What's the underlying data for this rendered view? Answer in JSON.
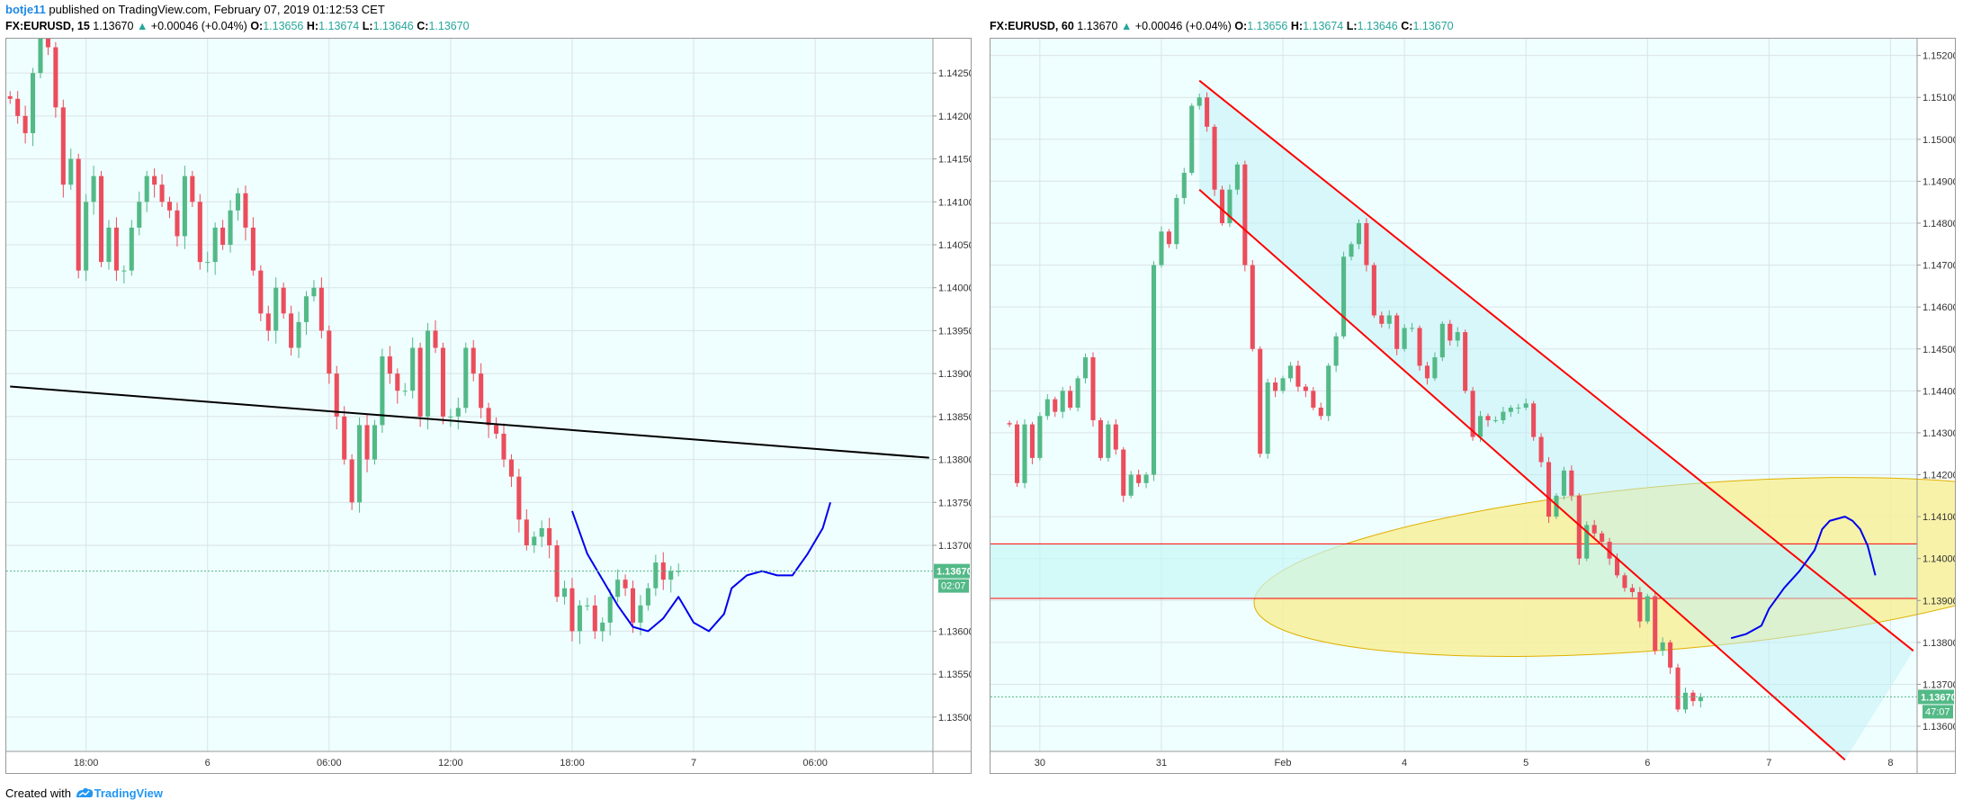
{
  "header": {
    "user": "botje11",
    "published": " published on TradingView.com, February 07, 2019 01:12:53 CET"
  },
  "footer": {
    "created": "Created with",
    "brand": "TradingView"
  },
  "colors": {
    "up": "#53b987",
    "down": "#eb4d5c",
    "bg": "#effefe",
    "grid": "#dbe3e6",
    "channel": "#ff0000",
    "ellipse": "#f7f09a",
    "zone": "#c8f7f7",
    "blue": "#0000ee"
  },
  "chart_data": [
    {
      "type": "candlestick",
      "symbol": "FX:EURUSD, 15",
      "last": "1.13670",
      "change": "+0.00046 (+0.04%)",
      "ohlc": {
        "O": "1.13656",
        "H": "1.13674",
        "L": "1.13646",
        "C": "1.13670"
      },
      "up_arrow": "▲",
      "y_ticks": [
        "1.14250",
        "1.14200",
        "1.14150",
        "1.14100",
        "1.14050",
        "1.14000",
        "1.13950",
        "1.13900",
        "1.13850",
        "1.13800",
        "1.13750",
        "1.13700",
        "1.13600",
        "1.13550",
        "1.13500"
      ],
      "ylim": [
        1.1346,
        1.1429
      ],
      "x_ticks": [
        "18:00",
        "6",
        "06:00",
        "12:00",
        "18:00",
        "7",
        "06:00"
      ],
      "x_tick_index": [
        10,
        26,
        42,
        58,
        74,
        90,
        106
      ],
      "x_slots": 122,
      "price_label": "1.13670",
      "countdown": "02:07",
      "closes": [
        1.1422,
        1.142,
        1.1418,
        1.1425,
        1.1432,
        1.1428,
        1.1421,
        1.1412,
        1.1415,
        1.1402,
        1.141,
        1.1413,
        1.1403,
        1.1407,
        1.1402,
        1.1402,
        1.1407,
        1.141,
        1.1413,
        1.1412,
        1.141,
        1.1409,
        1.1406,
        1.1413,
        1.141,
        1.1403,
        1.1403,
        1.1407,
        1.1405,
        1.1409,
        1.1411,
        1.1407,
        1.1402,
        1.1397,
        1.1395,
        1.14,
        1.1397,
        1.1393,
        1.1396,
        1.1399,
        1.14,
        1.1395,
        1.139,
        1.1385,
        1.138,
        1.1375,
        1.1384,
        1.138,
        1.1384,
        1.1392,
        1.139,
        1.1388,
        1.1388,
        1.1393,
        1.1385,
        1.1395,
        1.1393,
        1.1385,
        1.1385,
        1.1386,
        1.1393,
        1.139,
        1.1386,
        1.1384,
        1.1383,
        1.138,
        1.1378,
        1.1373,
        1.137,
        1.1371,
        1.1372,
        1.137,
        1.1364,
        1.1365,
        1.136,
        1.1363,
        1.1363,
        1.136,
        1.1361,
        1.1364,
        1.1366,
        1.1365,
        1.1361,
        1.1363,
        1.1365,
        1.1368,
        1.1366,
        1.1367,
        1.1367
      ],
      "trendline": [
        [
          0,
          1.13885
        ],
        [
          121,
          1.13802
        ]
      ],
      "blue_curve": [
        [
          74,
          1.1374
        ],
        [
          76,
          1.1369
        ],
        [
          78,
          1.1366
        ],
        [
          80,
          1.1363
        ],
        [
          82,
          1.13605
        ],
        [
          84,
          1.136
        ],
        [
          86,
          1.13615
        ],
        [
          88,
          1.1364
        ],
        [
          90,
          1.1361
        ],
        [
          92,
          1.136
        ],
        [
          94,
          1.1362
        ],
        [
          95,
          1.1365
        ],
        [
          97,
          1.13665
        ],
        [
          99,
          1.1367
        ],
        [
          101,
          1.13665
        ],
        [
          103,
          1.13665
        ],
        [
          105,
          1.1369
        ],
        [
          107,
          1.1372
        ],
        [
          108,
          1.1375
        ]
      ]
    },
    {
      "type": "candlestick",
      "symbol": "FX:EURUSD, 60",
      "last": "1.13670",
      "change": "+0.00046 (+0.04%)",
      "ohlc": {
        "O": "1.13656",
        "H": "1.13674",
        "L": "1.13646",
        "C": "1.13670"
      },
      "up_arrow": "▲",
      "y_ticks": [
        "1.15200",
        "1.15100",
        "1.15000",
        "1.14900",
        "1.14800",
        "1.14700",
        "1.14600",
        "1.14500",
        "1.14400",
        "1.14300",
        "1.14200",
        "1.14100",
        "1.14000",
        "1.13900",
        "1.13800",
        "1.13700",
        "1.13600"
      ],
      "ylim": [
        1.1354,
        1.1524
      ],
      "x_ticks": [
        "30",
        "31",
        "Feb",
        "4",
        "5",
        "6",
        "7",
        "8"
      ],
      "x_tick_index": [
        6,
        22,
        38,
        54,
        70,
        86,
        102,
        118
      ],
      "x_slots": 122,
      "price_label": "1.13670",
      "countdown": "47:07",
      "closes": [
        1.1432,
        1.1418,
        1.1432,
        1.1424,
        1.1434,
        1.1438,
        1.1435,
        1.144,
        1.1436,
        1.1443,
        1.1448,
        1.1433,
        1.1424,
        1.1432,
        1.1426,
        1.1415,
        1.142,
        1.1418,
        1.142,
        1.147,
        1.1478,
        1.1475,
        1.1486,
        1.1492,
        1.1508,
        1.151,
        1.1503,
        1.1488,
        1.148,
        1.1488,
        1.1494,
        1.147,
        1.145,
        1.1425,
        1.1442,
        1.144,
        1.1443,
        1.1446,
        1.1441,
        1.144,
        1.1436,
        1.1434,
        1.1446,
        1.1453,
        1.1472,
        1.1475,
        1.148,
        1.147,
        1.1458,
        1.1456,
        1.1458,
        1.145,
        1.1455,
        1.1455,
        1.1446,
        1.1443,
        1.1448,
        1.1456,
        1.1452,
        1.1454,
        1.144,
        1.1429,
        1.1434,
        1.1433,
        1.1433,
        1.1435,
        1.1436,
        1.1436,
        1.1437,
        1.1429,
        1.1423,
        1.141,
        1.1415,
        1.1421,
        1.1415,
        1.14,
        1.1408,
        1.1406,
        1.1404,
        1.14,
        1.1396,
        1.1393,
        1.1392,
        1.1385,
        1.1391,
        1.1378,
        1.138,
        1.1374,
        1.1364,
        1.1368,
        1.1366,
        1.1367
      ],
      "offset": 2,
      "channel_upper": [
        [
          27,
          1.1514
        ],
        [
          121,
          1.1378
        ]
      ],
      "channel_lower": [
        [
          27,
          1.1488
        ],
        [
          112,
          1.1352
        ]
      ],
      "zone_top": 1.14035,
      "zone_bottom": 1.13905,
      "ellipse": {
        "cx_idx": 90,
        "cy": 1.1398,
        "rx_idx": 56,
        "ry": 0.00195,
        "tilt": -5
      },
      "blue_curve": [
        [
          97,
          1.1381
        ],
        [
          99,
          1.1382
        ],
        [
          101,
          1.1384
        ],
        [
          102,
          1.1388
        ],
        [
          104,
          1.1393
        ],
        [
          106,
          1.1397
        ],
        [
          108,
          1.1402
        ],
        [
          109,
          1.1407
        ],
        [
          110,
          1.1409
        ],
        [
          112,
          1.141
        ],
        [
          113,
          1.1409
        ],
        [
          114,
          1.1407
        ],
        [
          115,
          1.1403
        ],
        [
          116,
          1.1396
        ]
      ]
    }
  ]
}
